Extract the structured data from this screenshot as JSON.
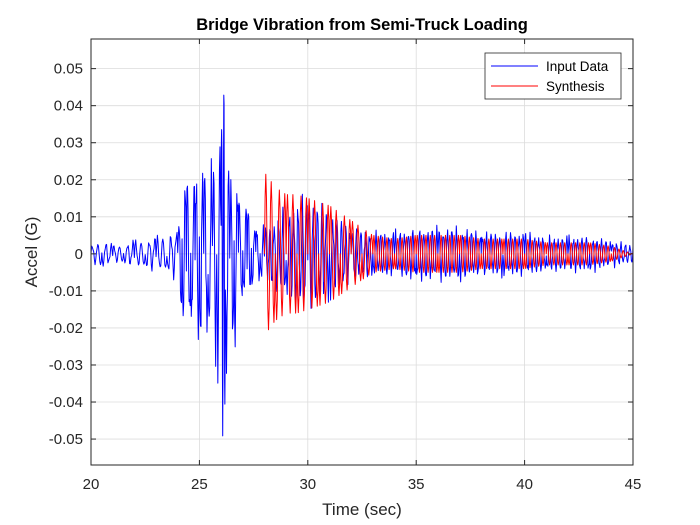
{
  "chart_data": {
    "type": "line",
    "title": "Bridge Vibration from Semi-Truck Loading",
    "xlabel": "Time (sec)",
    "ylabel": "Accel (G)",
    "xlim": [
      20,
      45
    ],
    "ylim": [
      -0.057,
      0.058
    ],
    "xticks": [
      20,
      25,
      30,
      35,
      40,
      45
    ],
    "xtick_labels": [
      "20",
      "25",
      "30",
      "35",
      "40",
      "45"
    ],
    "yticks": [
      -0.05,
      -0.04,
      -0.03,
      -0.02,
      -0.01,
      0,
      0.01,
      0.02,
      0.03,
      0.04,
      0.05
    ],
    "ytick_labels": [
      "-0.05",
      "-0.04",
      "-0.03",
      "-0.02",
      "-0.01",
      "0",
      "0.01",
      "0.02",
      "0.03",
      "0.04",
      "0.05"
    ],
    "grid": true,
    "legend": "top-right",
    "series": [
      {
        "name": "Input Data",
        "color": "#0000ff",
        "x": [
          20.0,
          20.5,
          21.0,
          21.5,
          22.0,
          22.5,
          23.0,
          23.5,
          24.0,
          24.2,
          24.4,
          24.6,
          24.8,
          25.0,
          25.2,
          25.4,
          25.6,
          25.8,
          26.0,
          26.1,
          26.2,
          26.4,
          26.6,
          26.8,
          27.0,
          27.2,
          27.4,
          27.6,
          27.8,
          28.0,
          29.0,
          30.0,
          31.0,
          32.0,
          33.0,
          34.0,
          35.0,
          36.0,
          37.0,
          38.0,
          39.0,
          40.0,
          41.0,
          42.0,
          43.0,
          44.0,
          45.0
        ],
        "y": [
          0.002,
          -0.003,
          0.002,
          -0.002,
          0.003,
          -0.003,
          0.004,
          -0.004,
          0.006,
          -0.015,
          0.018,
          -0.017,
          0.019,
          -0.019,
          0.021,
          -0.021,
          0.02,
          -0.025,
          0.032,
          0.039,
          -0.038,
          0.015,
          -0.022,
          0.016,
          -0.01,
          0.012,
          -0.008,
          0.007,
          -0.006,
          0.006,
          -0.01,
          0.013,
          -0.01,
          0.006,
          -0.005,
          0.005,
          -0.006,
          0.006,
          -0.006,
          0.005,
          -0.005,
          0.005,
          -0.004,
          0.004,
          -0.004,
          0.003,
          0.002
        ]
      },
      {
        "name": "Synthesis",
        "color": "#ff0000",
        "x": [
          28.0,
          28.5,
          29.0,
          29.5,
          30.0,
          30.5,
          31.0,
          31.5,
          32.0,
          32.5,
          33.0,
          34.0,
          35.0,
          36.0,
          37.0,
          38.0,
          39.0,
          40.0,
          41.0,
          42.0,
          43.0,
          44.0,
          45.0
        ],
        "y": [
          0.022,
          -0.018,
          0.016,
          -0.016,
          0.015,
          -0.014,
          0.013,
          -0.011,
          0.009,
          -0.007,
          0.005,
          -0.004,
          0.005,
          -0.005,
          0.005,
          -0.004,
          0.004,
          -0.004,
          0.003,
          -0.003,
          0.003,
          -0.002,
          0.0
        ]
      }
    ]
  }
}
